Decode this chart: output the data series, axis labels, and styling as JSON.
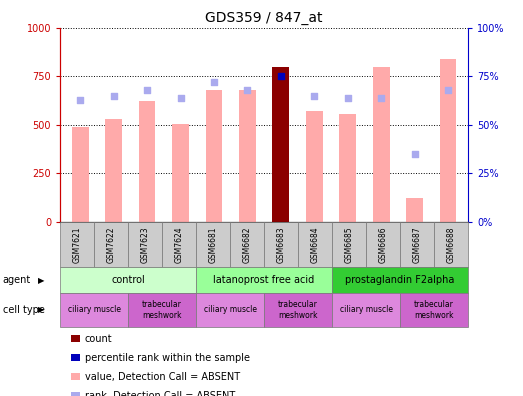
{
  "title": "GDS359 / 847_at",
  "samples": [
    "GSM7621",
    "GSM7622",
    "GSM7623",
    "GSM7624",
    "GSM6681",
    "GSM6682",
    "GSM6683",
    "GSM6684",
    "GSM6685",
    "GSM6686",
    "GSM6687",
    "GSM6688"
  ],
  "bar_values": [
    490,
    530,
    620,
    505,
    680,
    680,
    800,
    570,
    555,
    800,
    120,
    840
  ],
  "bar_colors": [
    "#ffaaaa",
    "#ffaaaa",
    "#ffaaaa",
    "#ffaaaa",
    "#ffaaaa",
    "#ffaaaa",
    "#8B0000",
    "#ffaaaa",
    "#ffaaaa",
    "#ffaaaa",
    "#ffaaaa",
    "#ffaaaa"
  ],
  "rank_values": [
    63,
    65,
    68,
    64,
    72,
    68,
    75,
    65,
    64,
    64,
    35,
    68
  ],
  "rank_marker_colors": [
    "#aaaaee",
    "#aaaaee",
    "#aaaaee",
    "#aaaaee",
    "#aaaaee",
    "#aaaaee",
    "#0000bb",
    "#aaaaee",
    "#aaaaee",
    "#aaaaee",
    "#aaaaee",
    "#aaaaee"
  ],
  "ylim_left": [
    0,
    1000
  ],
  "ylim_right": [
    0,
    100
  ],
  "yticks_left": [
    0,
    250,
    500,
    750,
    1000
  ],
  "ytick_labels_left": [
    "0",
    "250",
    "500",
    "750",
    "1000"
  ],
  "yticks_right": [
    0,
    25,
    50,
    75,
    100
  ],
  "ytick_labels_right": [
    "0%",
    "25%",
    "50%",
    "75%",
    "100%"
  ],
  "left_axis_color": "#cc0000",
  "right_axis_color": "#0000cc",
  "agent_groups": [
    {
      "label": "control",
      "start": 0,
      "end": 3,
      "color": "#ccffcc"
    },
    {
      "label": "latanoprost free acid",
      "start": 4,
      "end": 7,
      "color": "#99ff99"
    },
    {
      "label": "prostaglandin F2alpha",
      "start": 8,
      "end": 11,
      "color": "#33cc33"
    }
  ],
  "cell_type_groups": [
    {
      "label": "ciliary muscle",
      "start": 0,
      "end": 1,
      "color": "#dd88dd"
    },
    {
      "label": "trabecular\nmeshwork",
      "start": 2,
      "end": 3,
      "color": "#cc66cc"
    },
    {
      "label": "ciliary muscle",
      "start": 4,
      "end": 5,
      "color": "#dd88dd"
    },
    {
      "label": "trabecular\nmeshwork",
      "start": 6,
      "end": 7,
      "color": "#cc66cc"
    },
    {
      "label": "ciliary muscle",
      "start": 8,
      "end": 9,
      "color": "#dd88dd"
    },
    {
      "label": "trabecular\nmeshwork",
      "start": 10,
      "end": 11,
      "color": "#cc66cc"
    }
  ],
  "legend_items": [
    {
      "color": "#8B0000",
      "label": "count"
    },
    {
      "color": "#0000bb",
      "label": "percentile rank within the sample"
    },
    {
      "color": "#ffaaaa",
      "label": "value, Detection Call = ABSENT"
    },
    {
      "color": "#aaaaee",
      "label": "rank, Detection Call = ABSENT"
    }
  ]
}
